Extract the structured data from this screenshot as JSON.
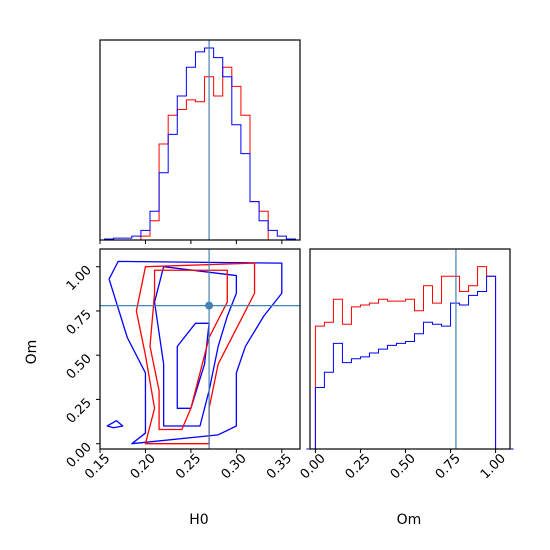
{
  "chart_data": {
    "type": "corner",
    "title": "",
    "parameters": [
      "H0",
      "Om"
    ],
    "truths": {
      "H0": 0.27,
      "Om": 0.78
    },
    "colors": {
      "blue": "#0000ff",
      "red": "#ff0000",
      "truth": "#4682b4",
      "frame": "#000000"
    },
    "x_ticks_H0": [
      "0.15",
      "0.20",
      "0.25",
      "0.30",
      "0.35"
    ],
    "y_ticks_Om": [
      "0.00",
      "0.25",
      "0.50",
      "0.75",
      "1.00"
    ],
    "x_ticks_Om": [
      "0.00",
      "0.25",
      "0.50",
      "0.75",
      "1.00"
    ],
    "xlim_H0": [
      0.15,
      0.37
    ],
    "ylim_Om": [
      -0.03,
      1.1
    ],
    "hist_H0": {
      "x": [
        0.16,
        0.17,
        0.18,
        0.19,
        0.2,
        0.21,
        0.22,
        0.23,
        0.24,
        0.25,
        0.26,
        0.27,
        0.28,
        0.29,
        0.3,
        0.31,
        0.32,
        0.33,
        0.34,
        0.35,
        0.36
      ],
      "blue": [
        0.005,
        0.01,
        0.01,
        0.02,
        0.05,
        0.15,
        0.35,
        0.55,
        0.75,
        0.9,
        0.98,
        1.0,
        0.95,
        0.85,
        0.6,
        0.45,
        0.2,
        0.1,
        0.05,
        0.02,
        0.005
      ],
      "red": [
        0.0,
        0.0,
        0.0,
        0.0,
        0.02,
        0.1,
        0.5,
        0.65,
        0.68,
        0.73,
        0.72,
        0.85,
        0.75,
        0.9,
        0.8,
        0.65,
        0.2,
        0.15,
        0.0,
        0.0,
        0.0
      ]
    },
    "hist_Om": {
      "x": [
        -0.025,
        0.025,
        0.075,
        0.125,
        0.175,
        0.225,
        0.275,
        0.325,
        0.375,
        0.425,
        0.475,
        0.525,
        0.575,
        0.625,
        0.675,
        0.725,
        0.775,
        0.825,
        0.875,
        0.925,
        0.975,
        1.025,
        1.075
      ],
      "blue": [
        0.0,
        0.32,
        0.4,
        0.55,
        0.45,
        0.47,
        0.48,
        0.5,
        0.52,
        0.54,
        0.55,
        0.56,
        0.6,
        0.66,
        0.65,
        0.64,
        0.76,
        0.75,
        0.8,
        0.82,
        0.9,
        0.0,
        0.0
      ],
      "red": [
        0.0,
        0.64,
        0.66,
        0.78,
        0.65,
        0.74,
        0.75,
        0.76,
        0.78,
        0.77,
        0.77,
        0.78,
        0.72,
        0.85,
        0.76,
        0.9,
        0.9,
        0.82,
        0.85,
        0.95,
        0.9,
        0.0,
        0.0
      ]
    },
    "contours_2d": {
      "blue_outer": [
        [
          0.185,
          0.0
        ],
        [
          0.2,
          0.06
        ],
        [
          0.2,
          0.4
        ],
        [
          0.18,
          0.6
        ],
        [
          0.16,
          0.93
        ],
        [
          0.17,
          1.03
        ],
        [
          0.35,
          1.02
        ],
        [
          0.35,
          0.85
        ],
        [
          0.33,
          0.72
        ],
        [
          0.31,
          0.55
        ],
        [
          0.3,
          0.4
        ],
        [
          0.3,
          0.25
        ],
        [
          0.3,
          0.1
        ],
        [
          0.28,
          0.05
        ]
      ],
      "blue_inner": [
        [
          0.22,
          0.1
        ],
        [
          0.22,
          0.45
        ],
        [
          0.21,
          0.8
        ],
        [
          0.22,
          1.0
        ],
        [
          0.3,
          0.95
        ],
        [
          0.3,
          0.85
        ],
        [
          0.29,
          0.72
        ],
        [
          0.28,
          0.55
        ],
        [
          0.27,
          0.3
        ],
        [
          0.26,
          0.1
        ]
      ],
      "blue_core": [
        [
          0.235,
          0.2
        ],
        [
          0.235,
          0.55
        ],
        [
          0.255,
          0.68
        ],
        [
          0.27,
          0.68
        ],
        [
          0.265,
          0.45
        ],
        [
          0.25,
          0.2
        ]
      ],
      "red_outer": [
        [
          0.2,
          0.0
        ],
        [
          0.21,
          0.2
        ],
        [
          0.2,
          0.5
        ],
        [
          0.19,
          0.75
        ],
        [
          0.2,
          1.0
        ],
        [
          0.32,
          1.02
        ],
        [
          0.32,
          0.85
        ],
        [
          0.3,
          0.65
        ],
        [
          0.28,
          0.45
        ],
        [
          0.27,
          0.2
        ],
        [
          0.27,
          0.0
        ]
      ],
      "red_inner": [
        [
          0.215,
          0.08
        ],
        [
          0.215,
          0.3
        ],
        [
          0.205,
          0.55
        ],
        [
          0.21,
          0.85
        ],
        [
          0.21,
          0.98
        ],
        [
          0.29,
          0.98
        ],
        [
          0.29,
          0.8
        ],
        [
          0.27,
          0.6
        ],
        [
          0.26,
          0.4
        ],
        [
          0.25,
          0.2
        ],
        [
          0.24,
          0.08
        ]
      ],
      "blue_small": [
        [
          0.165,
          0.09
        ],
        [
          0.175,
          0.1
        ],
        [
          0.168,
          0.13
        ],
        [
          0.158,
          0.1
        ]
      ]
    }
  }
}
